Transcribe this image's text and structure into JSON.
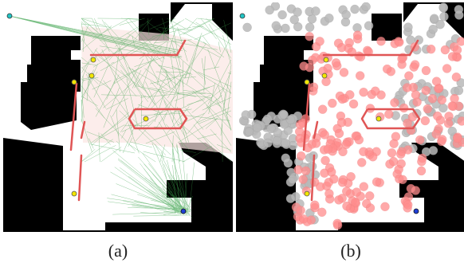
{
  "panels": [
    {
      "id": "a",
      "caption": "(a)",
      "overlay": "trajectories"
    },
    {
      "id": "b",
      "caption": "(b)",
      "overlay": "samples"
    }
  ],
  "colors": {
    "obstacle": "#000000",
    "free": "#ffffff",
    "wall": "#e05555",
    "waypoint": "#f2e600",
    "start": "#22c5c5",
    "goal": "#1f3fd6",
    "trajectory": "#3aa14a",
    "tint": "#fbe6e3",
    "sample_free": "#ff8d8d",
    "sample_obstacle": "#b9b9b9"
  },
  "markers": {
    "start": "start-marker",
    "goal": "goal-marker",
    "waypoint_count": 5
  }
}
